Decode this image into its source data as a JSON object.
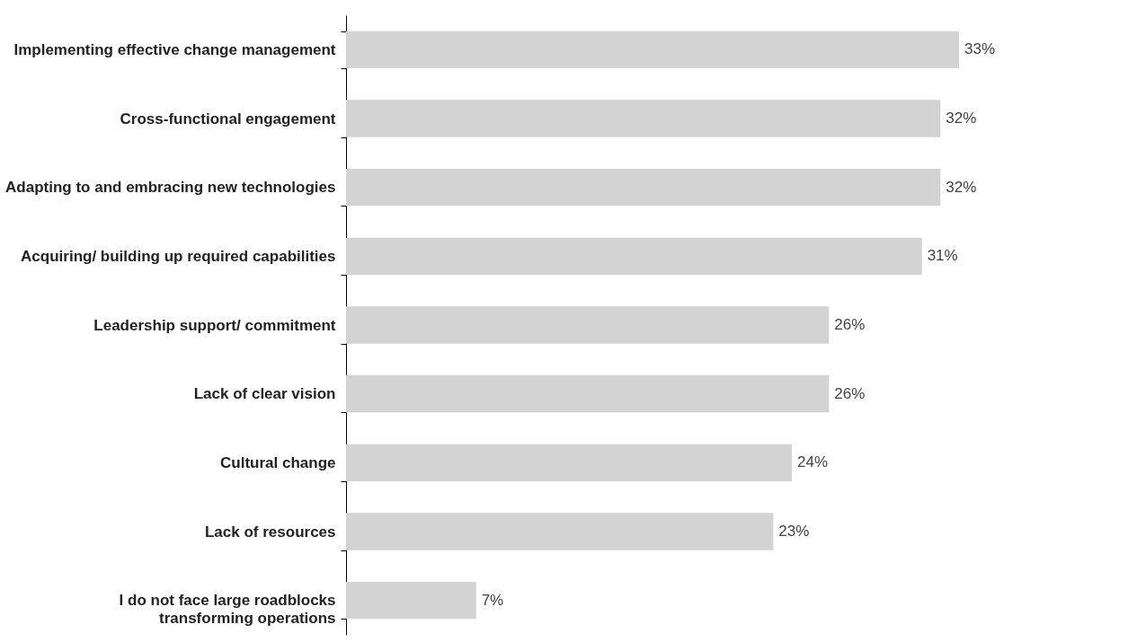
{
  "chart_data": {
    "type": "bar",
    "orientation": "horizontal",
    "categories": [
      "Implementing effective change management",
      "Cross-functional engagement",
      "Adapting to and embracing new technologies",
      "Acquiring/ building up required capabilities",
      "Leadership support/ commitment",
      "Lack of clear vision",
      "Cultural change",
      "Lack of resources",
      "I do not face large roadblocks\ntransforming operations"
    ],
    "values": [
      33,
      32,
      32,
      31,
      26,
      26,
      24,
      23,
      7
    ],
    "value_labels": [
      "33%",
      "32%",
      "32%",
      "31%",
      "26%",
      "26%",
      "24%",
      "23%",
      "7%"
    ],
    "color": "#d3d3d3"
  }
}
